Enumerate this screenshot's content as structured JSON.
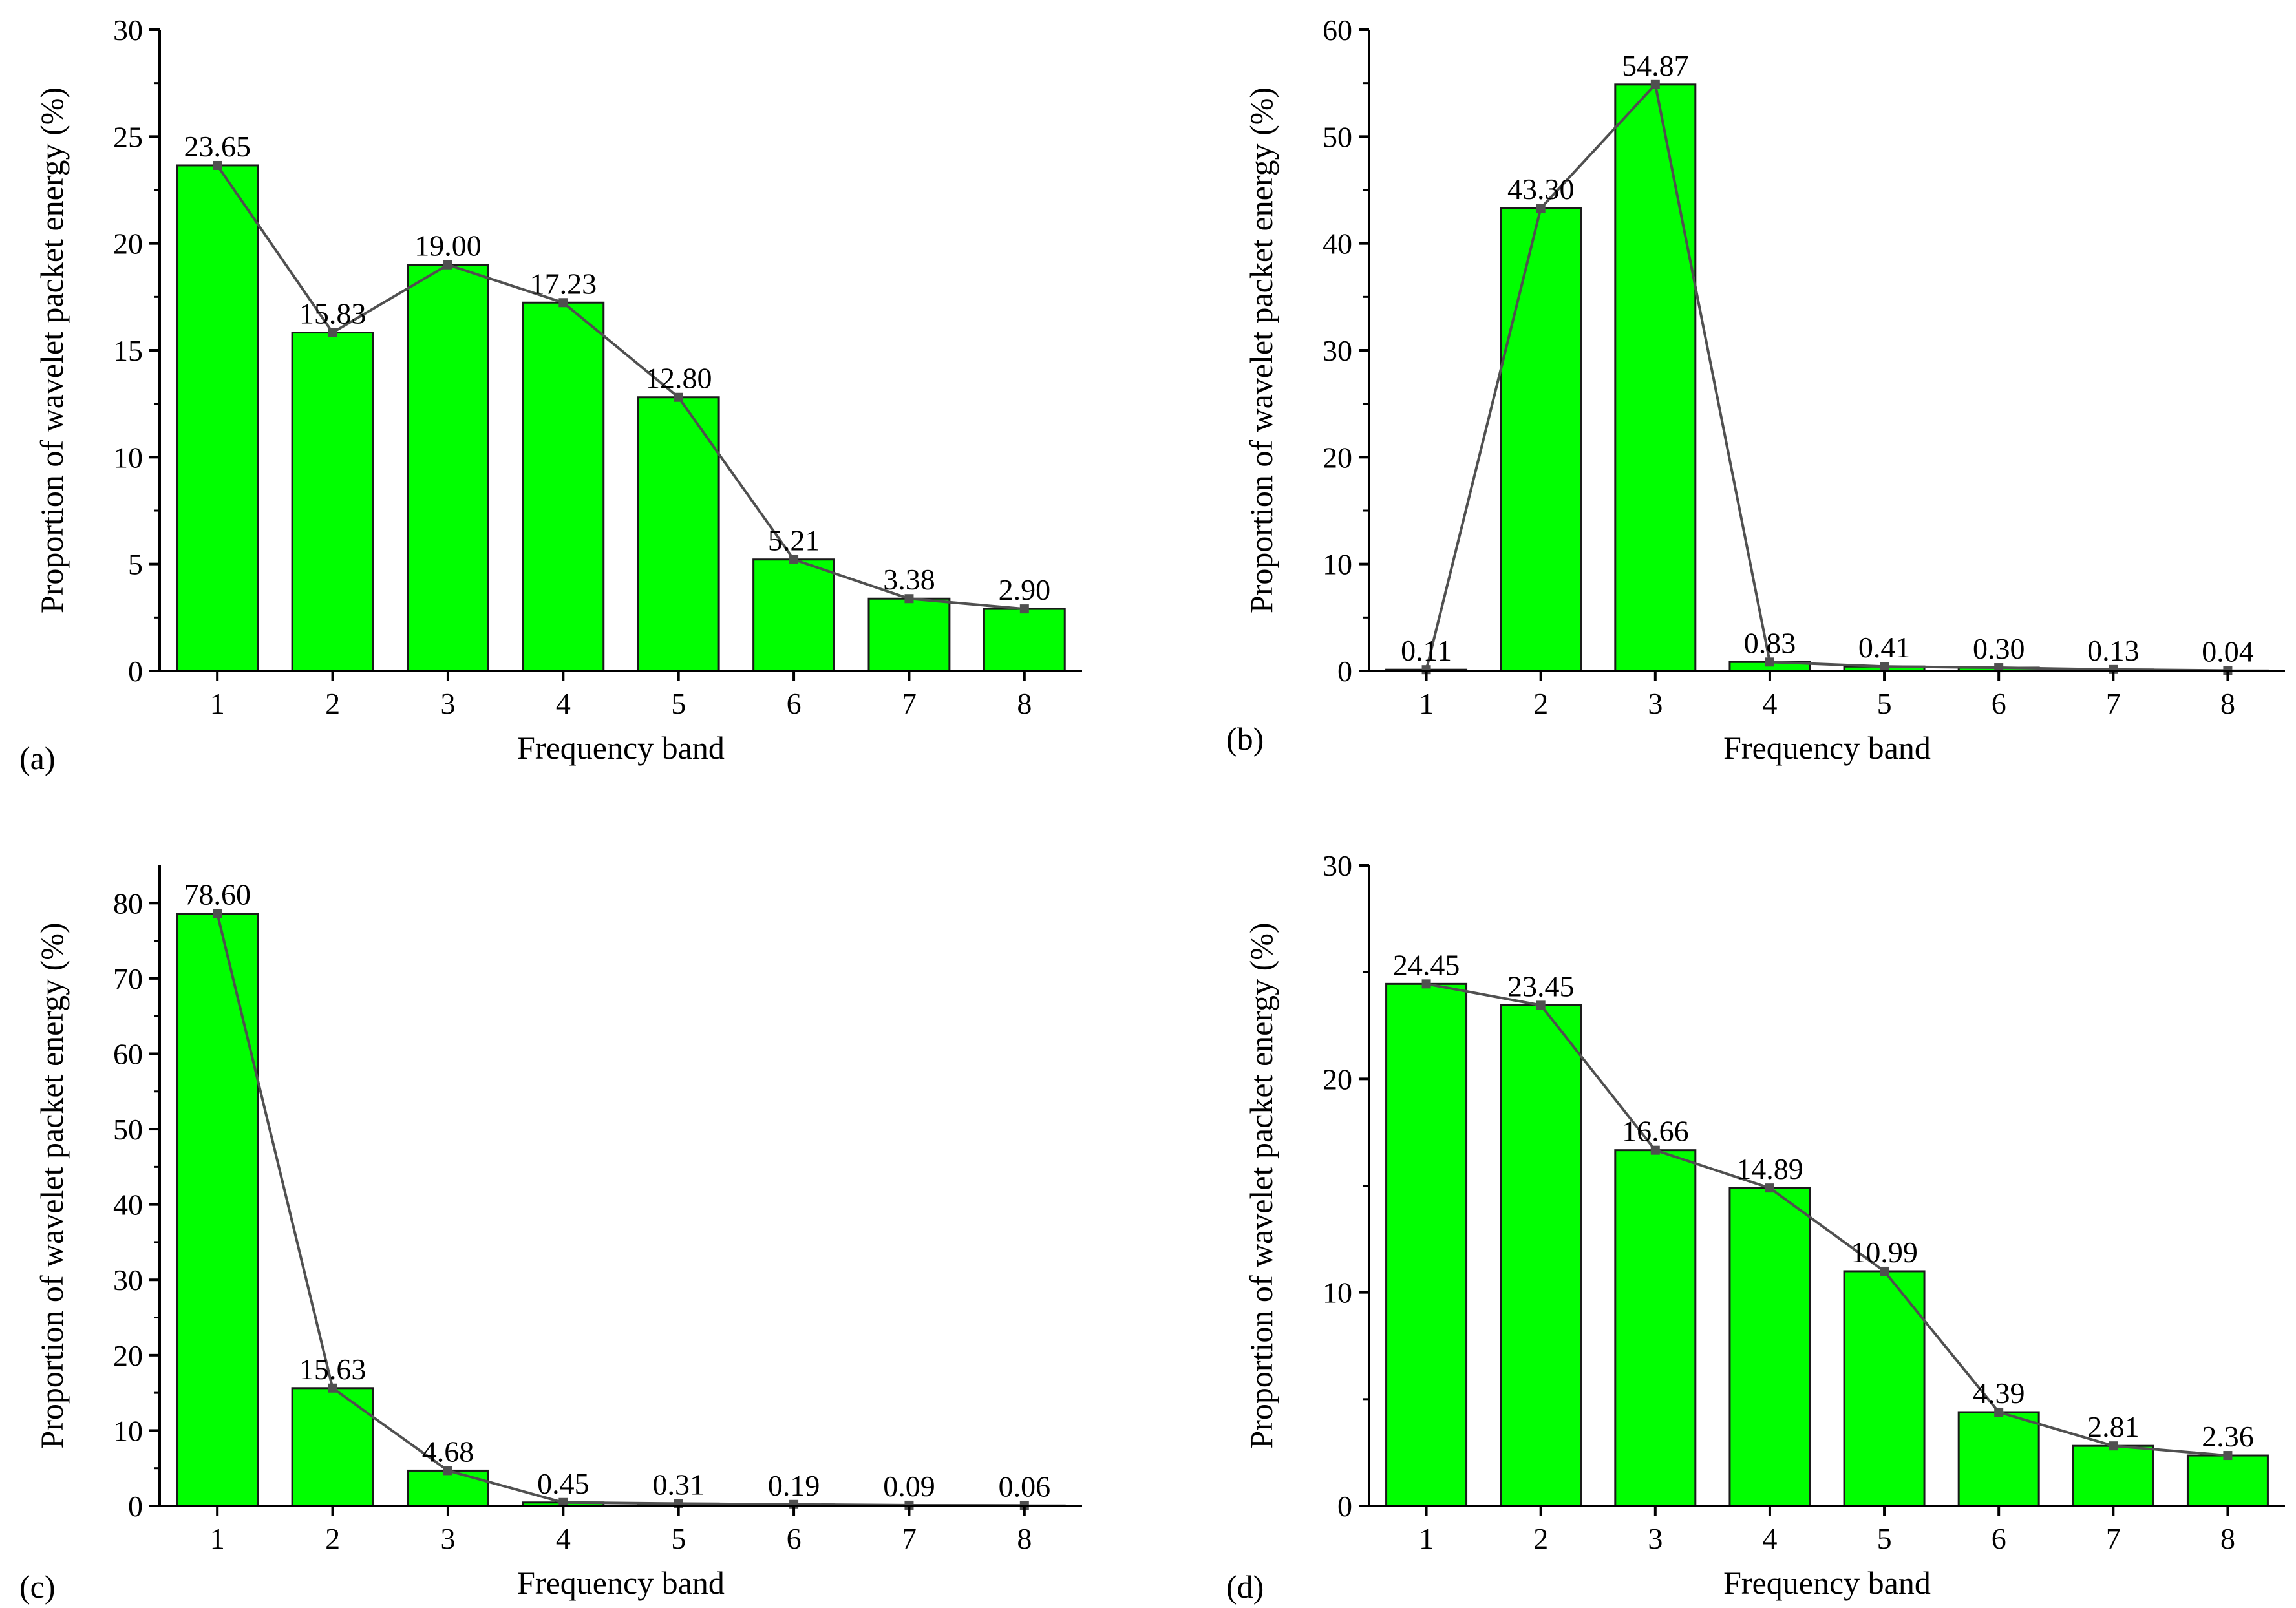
{
  "chart_data": [
    {
      "type": "bar",
      "panel_label": "(a)",
      "categories": [
        "1",
        "2",
        "3",
        "4",
        "5",
        "6",
        "7",
        "8"
      ],
      "values": [
        23.65,
        15.83,
        19.0,
        17.23,
        12.8,
        5.21,
        3.38,
        2.9
      ],
      "value_labels": [
        "23.65",
        "15.83",
        "19.00",
        "17.23",
        "12.80",
        "5.21",
        "3.38",
        "2.90"
      ],
      "overlay": "line",
      "xlabel": "Frequency band",
      "ylabel": "Proportion of wavelet packet energy (%)",
      "ylim": [
        0,
        30
      ],
      "yticks": [
        0,
        5,
        10,
        15,
        20,
        25,
        30
      ],
      "grid": false
    },
    {
      "type": "bar",
      "panel_label": "(b)",
      "categories": [
        "1",
        "2",
        "3",
        "4",
        "5",
        "6",
        "7",
        "8"
      ],
      "values": [
        0.11,
        43.3,
        54.87,
        0.83,
        0.41,
        0.3,
        0.13,
        0.04
      ],
      "value_labels": [
        "0.11",
        "43.30",
        "54.87",
        "0.83",
        "0.41",
        "0.30",
        "0.13",
        "0.04"
      ],
      "overlay": "line",
      "xlabel": "Frequency band",
      "ylabel": "Proportion of wavelet packet energy (%)",
      "ylim": [
        0,
        60
      ],
      "yticks": [
        0,
        10,
        20,
        30,
        40,
        50,
        60
      ],
      "grid": false
    },
    {
      "type": "bar",
      "panel_label": "(c)",
      "categories": [
        "1",
        "2",
        "3",
        "4",
        "5",
        "6",
        "7",
        "8"
      ],
      "values": [
        78.6,
        15.63,
        4.68,
        0.45,
        0.31,
        0.19,
        0.09,
        0.06
      ],
      "value_labels": [
        "78.60",
        "15.63",
        "4.68",
        "0.45",
        "0.31",
        "0.19",
        "0.09",
        "0.06"
      ],
      "overlay": "line",
      "xlabel": "Frequency band",
      "ylabel": "Proportion of wavelet packet energy (%)",
      "ylim": [
        0,
        85
      ],
      "yticks": [
        0,
        10,
        20,
        30,
        40,
        50,
        60,
        70,
        80
      ],
      "grid": false
    },
    {
      "type": "bar",
      "panel_label": "(d)",
      "categories": [
        "1",
        "2",
        "3",
        "4",
        "5",
        "6",
        "7",
        "8"
      ],
      "values": [
        24.45,
        23.45,
        16.66,
        14.89,
        10.99,
        4.39,
        2.81,
        2.36
      ],
      "value_labels": [
        "24.45",
        "23.45",
        "16.66",
        "14.89",
        "10.99",
        "4.39",
        "2.81",
        "2.36"
      ],
      "overlay": "line",
      "xlabel": "Frequency band",
      "ylabel": "Proportion of wavelet packet energy (%)",
      "ylim": [
        0,
        30
      ],
      "yticks": [
        0,
        10,
        20,
        30
      ],
      "grid": false
    }
  ],
  "colors": {
    "bar_fill": "#00ff00",
    "bar_stroke": "#1a1a1a",
    "line": "#505050",
    "axis": "#000000"
  }
}
